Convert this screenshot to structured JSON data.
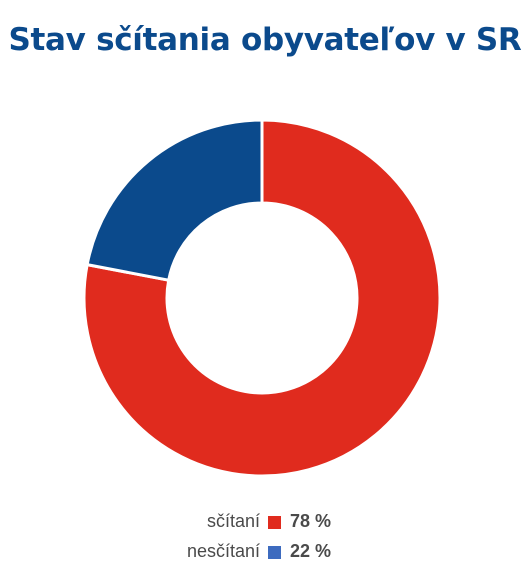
{
  "chart_data": {
    "type": "pie",
    "title": "Stav sčítania obyvateľov v SR",
    "categories": [
      "sčítaní",
      "nesčítaní"
    ],
    "values": [
      78,
      22
    ],
    "value_labels": [
      "78 %",
      "22 %"
    ],
    "colors": [
      "#e02b1e",
      "#0b4a8c"
    ],
    "legend_colors": [
      "#e02b1e",
      "#3d6bbf"
    ],
    "legend": "bottom",
    "donut": true
  }
}
